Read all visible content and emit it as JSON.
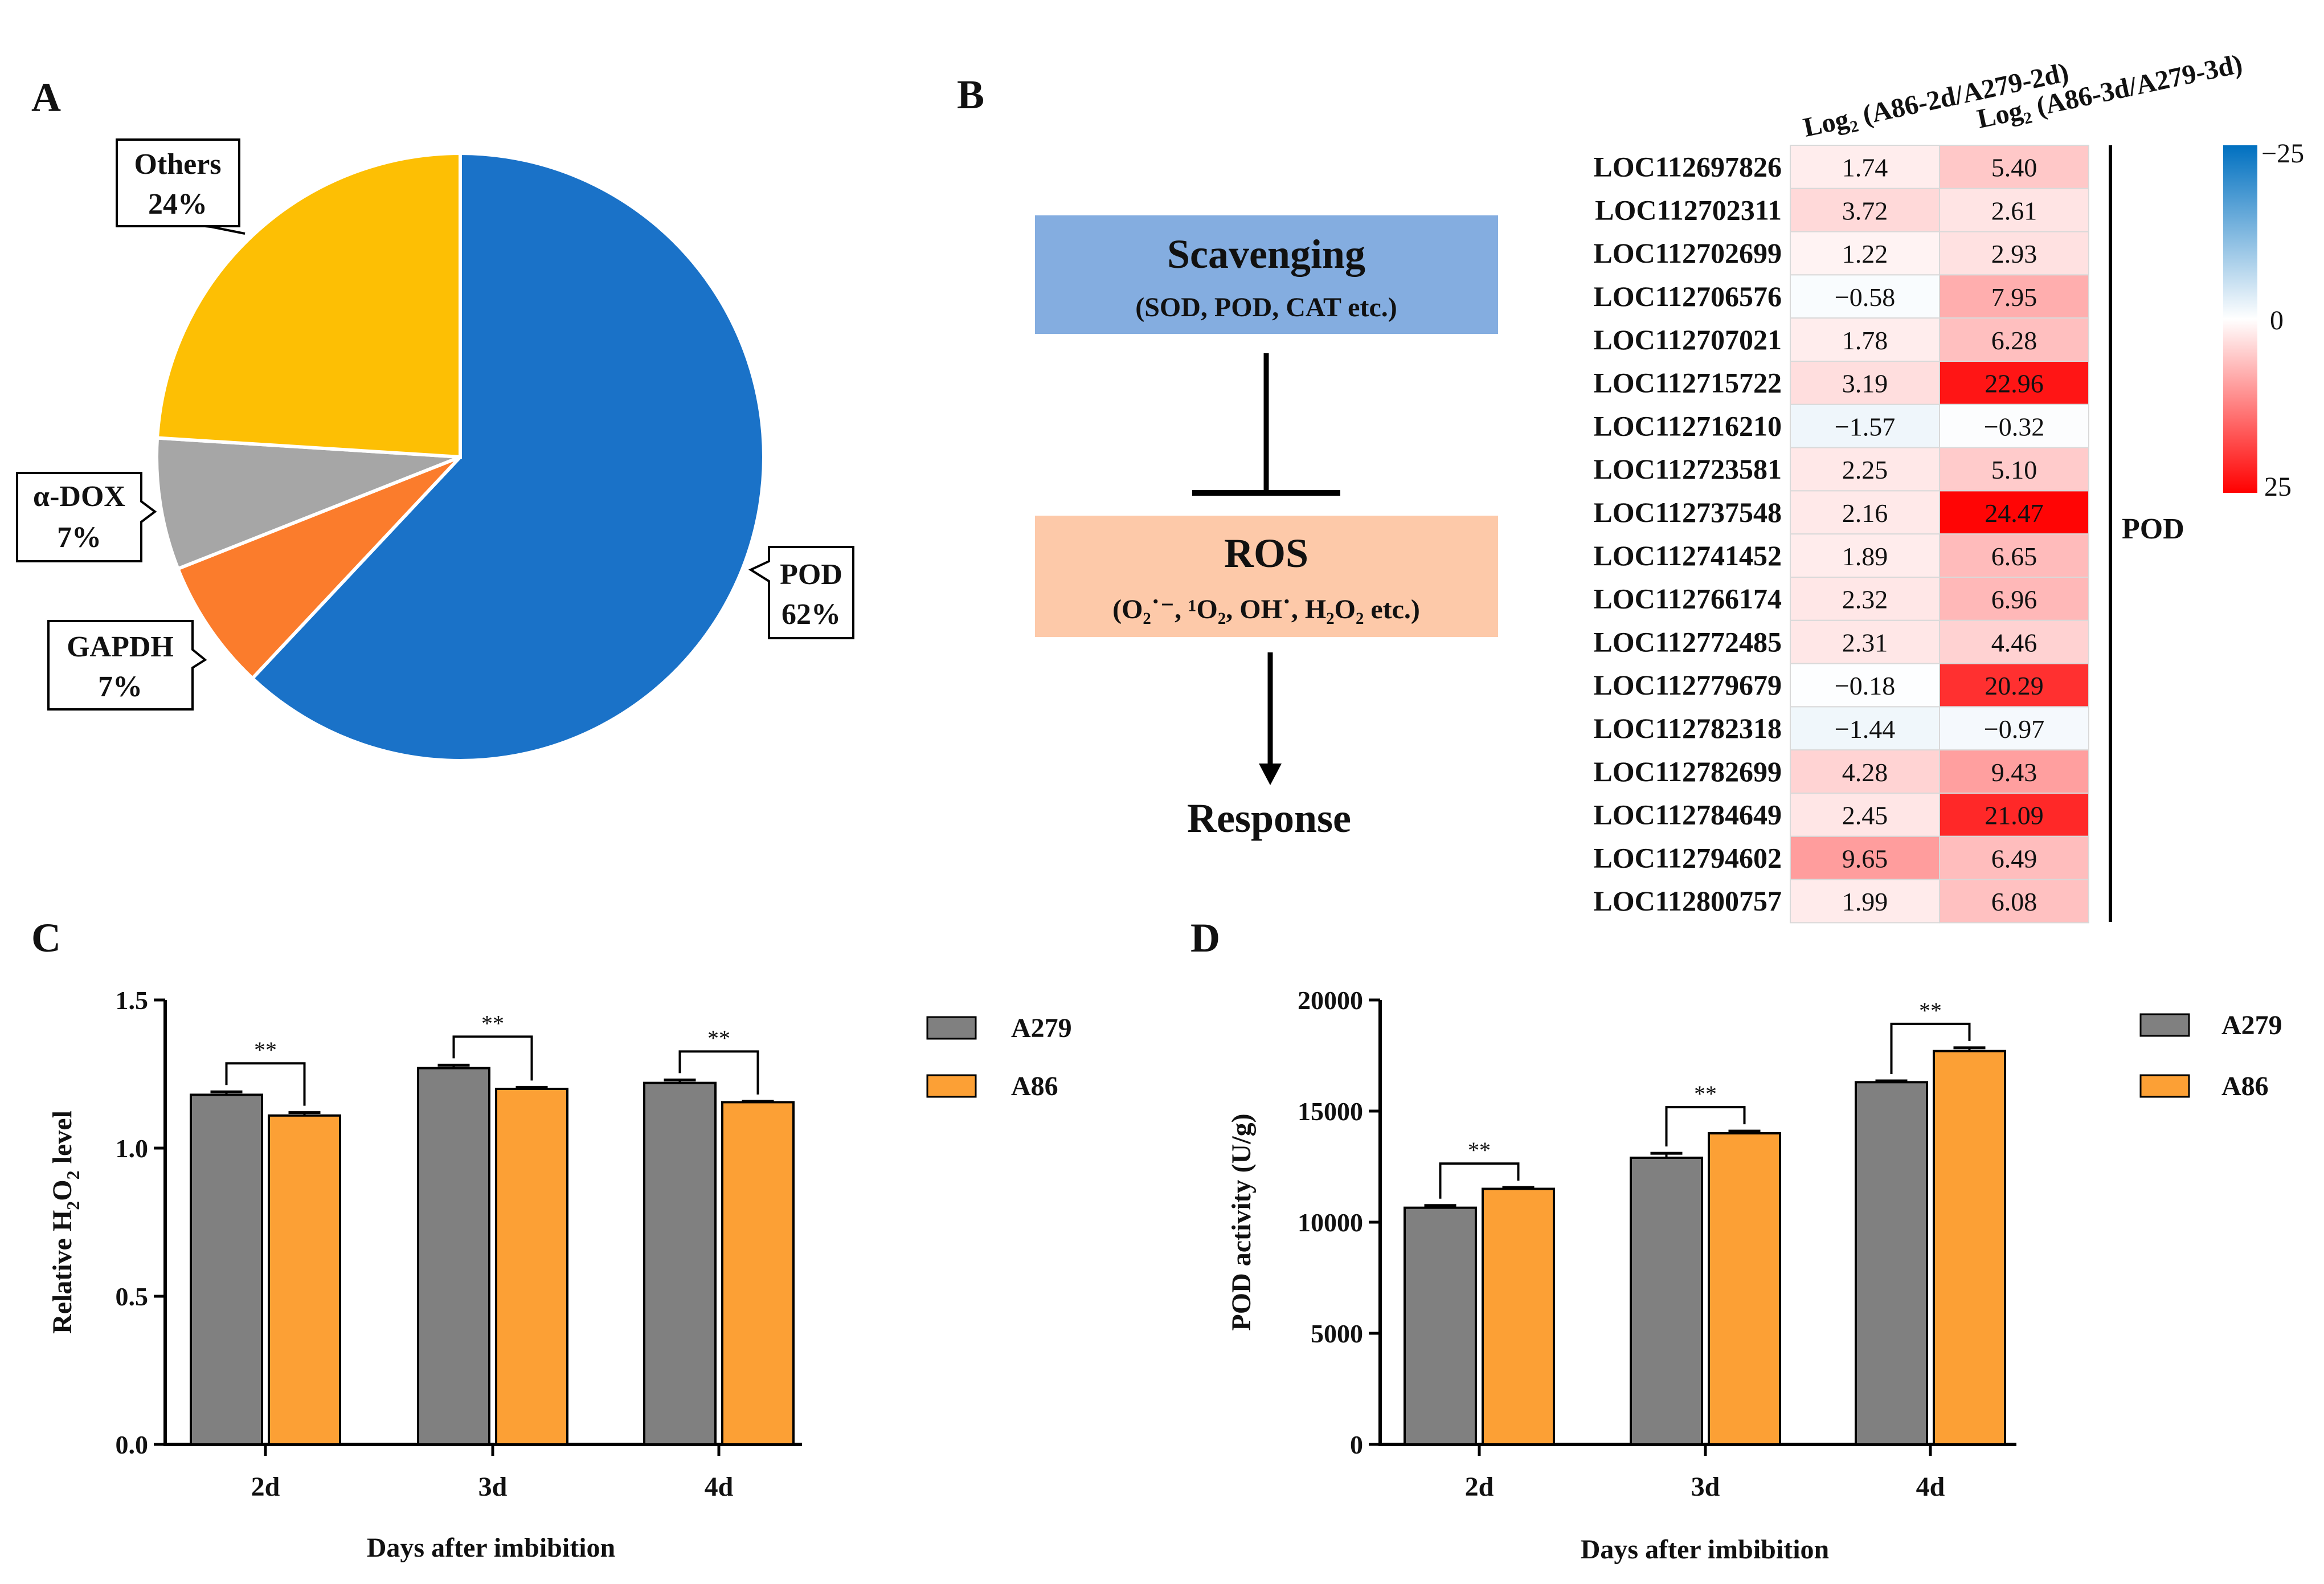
{
  "panel_letters": [
    "A",
    "B",
    "C",
    "D"
  ],
  "pie": {
    "slices": [
      {
        "label": "POD",
        "pct_label": "62%",
        "value": 62,
        "color": "#1a72c8"
      },
      {
        "label": "GAPDH",
        "pct_label": "7%",
        "value": 7,
        "color": "#fb7c2c"
      },
      {
        "label": "α-DOX",
        "pct_label": "7%",
        "value": 7,
        "color": "#a6a6a6"
      },
      {
        "label": "Others",
        "pct_label": "24%",
        "value": 24,
        "color": "#fdbf04"
      }
    ]
  },
  "scheme": {
    "scavenging_title": "Scavenging",
    "scavenging_sub": "(SOD, POD, CAT etc.)",
    "ros_title": "ROS",
    "ros_sub": "(O₂˙⁻, ¹O₂, OH˙, H₂O₂ etc.)",
    "response": "Response",
    "scavenging_color": "#84ade0",
    "ros_color": "#fdc9a9"
  },
  "chart_data": [
    {
      "type": "heatmap",
      "columns": [
        "Log₂ (A86-2d/A279-2d)",
        "Log₂ (A86-3d/A279-3d)"
      ],
      "rows": [
        {
          "gene": "LOC112697826",
          "values": [
            1.74,
            5.4
          ],
          "labels": [
            "1.74",
            "5.40"
          ]
        },
        {
          "gene": "LOC112702311",
          "values": [
            3.72,
            2.61
          ],
          "labels": [
            "3.72",
            "2.61"
          ]
        },
        {
          "gene": "LOC112702699",
          "values": [
            1.22,
            2.93
          ],
          "labels": [
            "1.22",
            "2.93"
          ]
        },
        {
          "gene": "LOC112706576",
          "values": [
            -0.58,
            7.95
          ],
          "labels": [
            "−0.58",
            "7.95"
          ]
        },
        {
          "gene": "LOC112707021",
          "values": [
            1.78,
            6.28
          ],
          "labels": [
            "1.78",
            "6.28"
          ]
        },
        {
          "gene": "LOC112715722",
          "values": [
            3.19,
            22.96
          ],
          "labels": [
            "3.19",
            "22.96"
          ]
        },
        {
          "gene": "LOC112716210",
          "values": [
            -1.57,
            -0.32
          ],
          "labels": [
            "−1.57",
            "−0.32"
          ]
        },
        {
          "gene": "LOC112723581",
          "values": [
            2.25,
            5.1
          ],
          "labels": [
            "2.25",
            "5.10"
          ]
        },
        {
          "gene": "LOC112737548",
          "values": [
            2.16,
            24.47
          ],
          "labels": [
            "2.16",
            "24.47"
          ]
        },
        {
          "gene": "LOC112741452",
          "values": [
            1.89,
            6.65
          ],
          "labels": [
            "1.89",
            "6.65"
          ]
        },
        {
          "gene": "LOC112766174",
          "values": [
            2.32,
            6.96
          ],
          "labels": [
            "2.32",
            "6.96"
          ]
        },
        {
          "gene": "LOC112772485",
          "values": [
            2.31,
            4.46
          ],
          "labels": [
            "2.31",
            "4.46"
          ]
        },
        {
          "gene": "LOC112779679",
          "values": [
            -0.18,
            20.29
          ],
          "labels": [
            "−0.18",
            "20.29"
          ]
        },
        {
          "gene": "LOC112782318",
          "values": [
            -1.44,
            -0.97
          ],
          "labels": [
            "−1.44",
            "−0.97"
          ]
        },
        {
          "gene": "LOC112782699",
          "values": [
            4.28,
            9.43
          ],
          "labels": [
            "4.28",
            "9.43"
          ]
        },
        {
          "gene": "LOC112784649",
          "values": [
            2.45,
            21.09
          ],
          "labels": [
            "2.45",
            "21.09"
          ]
        },
        {
          "gene": "LOC112794602",
          "values": [
            9.65,
            6.49
          ],
          "labels": [
            "9.65",
            "6.49"
          ]
        },
        {
          "gene": "LOC112800757",
          "values": [
            1.99,
            6.08
          ],
          "labels": [
            "1.99",
            "6.08"
          ]
        }
      ],
      "group_label": "POD",
      "scale": {
        "min": -25,
        "max": 25,
        "tick_labels": [
          "−25",
          "0",
          "25"
        ],
        "low_color": "#0070c0",
        "mid_color": "#ffffff",
        "high_color": "#ff0000"
      }
    },
    {
      "type": "bar",
      "categories": [
        "2d",
        "3d",
        "4d"
      ],
      "series": [
        {
          "name": "A279",
          "values": [
            1.18,
            1.27,
            1.22
          ],
          "errors": [
            0.01,
            0.01,
            0.01
          ],
          "color": "#808080"
        },
        {
          "name": "A86",
          "values": [
            1.11,
            1.2,
            1.155
          ],
          "errors": [
            0.01,
            0.005,
            0.003
          ],
          "color": "#fca035"
        }
      ],
      "ylim": [
        0,
        1.5
      ],
      "yticks": [
        "0.0",
        "0.5",
        "1.0",
        "1.5"
      ],
      "ytick_values": [
        0,
        0.5,
        1.0,
        1.5
      ],
      "ylabel_main": "Relative H",
      "ylabel_sub1": "2",
      "ylabel_mid": "O",
      "ylabel_sub2": "2",
      "ylabel_end": " level",
      "xlabel": "Days after imbibition",
      "significance": [
        "**",
        "**",
        "**"
      ],
      "legend_position": "top-right"
    },
    {
      "type": "bar",
      "categories": [
        "2d",
        "3d",
        "4d"
      ],
      "series": [
        {
          "name": "A279",
          "values": [
            10650,
            12900,
            16300
          ],
          "errors": [
            100,
            200,
            60
          ],
          "color": "#808080"
        },
        {
          "name": "A86",
          "values": [
            11500,
            14000,
            17700
          ],
          "errors": [
            60,
            100,
            150
          ],
          "color": "#fca035"
        }
      ],
      "ylim": [
        0,
        20000
      ],
      "yticks": [
        "0",
        "5000",
        "10000",
        "15000",
        "20000"
      ],
      "ytick_values": [
        0,
        5000,
        10000,
        15000,
        20000
      ],
      "ylabel": "POD activity (U/g)",
      "xlabel": "Days after imbibition",
      "significance": [
        "**",
        "**",
        "**"
      ],
      "legend_position": "top-right"
    }
  ]
}
